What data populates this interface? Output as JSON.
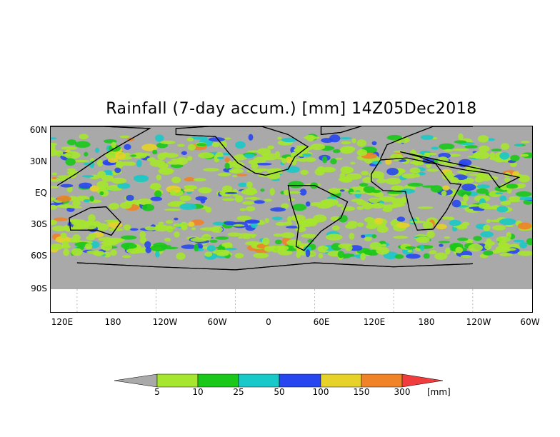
{
  "title": "Rainfall (7-day accum.) [mm] 14Z05Dec2018",
  "lat_labels": [
    "60N",
    "30N",
    "EQ",
    "30S",
    "60S",
    "90S"
  ],
  "lon_labels": [
    "120E",
    "180",
    "120W",
    "60W",
    "0",
    "60E",
    "120E",
    "180",
    "120W",
    "60W"
  ],
  "colorbar": {
    "levels": [
      "5",
      "10",
      "25",
      "50",
      "100",
      "150",
      "300"
    ],
    "unit": "[mm]",
    "colors": [
      "#a9a9a9",
      "#a6e62e",
      "#19c819",
      "#19c8c8",
      "#2846f0",
      "#e6d228",
      "#f08228",
      "#f03c3c"
    ]
  },
  "colors": {
    "land_mask_gray": "#a9a9a9",
    "background": "#ffffff",
    "coastline": "#000000"
  }
}
